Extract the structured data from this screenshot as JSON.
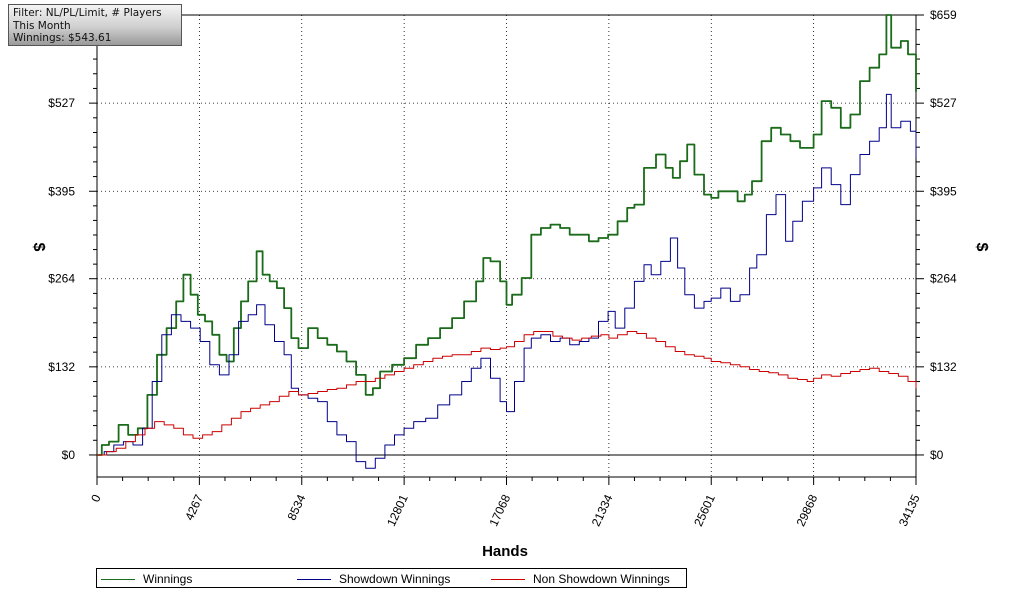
{
  "filter_box": {
    "line1": "Filter: NL/PL/Limit, # Players",
    "line2": "This Month",
    "line3": "Winnings: $543.61"
  },
  "chart_data": {
    "type": "line",
    "xlabel": "Hands",
    "ylabel_left": "$",
    "ylabel_right": "$",
    "xlim": [
      0,
      34135
    ],
    "ylim": [
      -33,
      659
    ],
    "x_ticks": [
      "0",
      "4267",
      "8534",
      "12801",
      "17068",
      "21334",
      "25601",
      "29868",
      "34135"
    ],
    "y_ticks": [
      "$0",
      "$132",
      "$264",
      "$395",
      "$527",
      "$659"
    ],
    "grid": true,
    "legend_position": "bottom",
    "series": [
      {
        "name": "Winnings",
        "color": "#1a6b1a",
        "points": [
          [
            0,
            0
          ],
          [
            200,
            15
          ],
          [
            500,
            20
          ],
          [
            900,
            45
          ],
          [
            1300,
            30
          ],
          [
            1700,
            40
          ],
          [
            2100,
            90
          ],
          [
            2500,
            150
          ],
          [
            2900,
            190
          ],
          [
            3300,
            230
          ],
          [
            3600,
            270
          ],
          [
            3900,
            240
          ],
          [
            4200,
            210
          ],
          [
            4500,
            200
          ],
          [
            4800,
            180
          ],
          [
            5100,
            150
          ],
          [
            5400,
            140
          ],
          [
            5700,
            190
          ],
          [
            6000,
            230
          ],
          [
            6300,
            260
          ],
          [
            6650,
            305
          ],
          [
            6900,
            270
          ],
          [
            7200,
            260
          ],
          [
            7500,
            250
          ],
          [
            7800,
            220
          ],
          [
            8100,
            175
          ],
          [
            8400,
            160
          ],
          [
            8800,
            190
          ],
          [
            9200,
            175
          ],
          [
            9600,
            165
          ],
          [
            10000,
            155
          ],
          [
            10400,
            140
          ],
          [
            10800,
            120
          ],
          [
            11200,
            90
          ],
          [
            11500,
            100
          ],
          [
            11800,
            125
          ],
          [
            12300,
            135
          ],
          [
            12800,
            145
          ],
          [
            13300,
            165
          ],
          [
            13800,
            175
          ],
          [
            14300,
            190
          ],
          [
            14800,
            205
          ],
          [
            15300,
            230
          ],
          [
            15800,
            260
          ],
          [
            16100,
            295
          ],
          [
            16400,
            290
          ],
          [
            16800,
            260
          ],
          [
            17068,
            225
          ],
          [
            17300,
            240
          ],
          [
            17700,
            265
          ],
          [
            18100,
            330
          ],
          [
            18500,
            340
          ],
          [
            18900,
            345
          ],
          [
            19300,
            340
          ],
          [
            19700,
            330
          ],
          [
            20100,
            330
          ],
          [
            20500,
            320
          ],
          [
            20900,
            325
          ],
          [
            21300,
            330
          ],
          [
            21700,
            350
          ],
          [
            22100,
            370
          ],
          [
            22400,
            375
          ],
          [
            22800,
            430
          ],
          [
            23300,
            450
          ],
          [
            23700,
            430
          ],
          [
            24000,
            415
          ],
          [
            24300,
            440
          ],
          [
            24600,
            465
          ],
          [
            24900,
            420
          ],
          [
            25300,
            390
          ],
          [
            25601,
            385
          ],
          [
            25900,
            395
          ],
          [
            26300,
            395
          ],
          [
            26700,
            380
          ],
          [
            27000,
            390
          ],
          [
            27300,
            410
          ],
          [
            27700,
            470
          ],
          [
            28100,
            490
          ],
          [
            28500,
            480
          ],
          [
            28900,
            470
          ],
          [
            29300,
            460
          ],
          [
            29868,
            480
          ],
          [
            30200,
            530
          ],
          [
            30600,
            520
          ],
          [
            31000,
            490
          ],
          [
            31400,
            510
          ],
          [
            31800,
            560
          ],
          [
            32200,
            580
          ],
          [
            32600,
            600
          ],
          [
            32900,
            659
          ],
          [
            33100,
            610
          ],
          [
            33500,
            620
          ],
          [
            33800,
            600
          ],
          [
            34135,
            544
          ]
        ]
      },
      {
        "name": "Showdown Winnings",
        "color": "#00008b",
        "points": [
          [
            0,
            0
          ],
          [
            300,
            5
          ],
          [
            700,
            15
          ],
          [
            1100,
            20
          ],
          [
            1500,
            15
          ],
          [
            1900,
            40
          ],
          [
            2300,
            110
          ],
          [
            2700,
            180
          ],
          [
            3100,
            210
          ],
          [
            3500,
            200
          ],
          [
            3900,
            190
          ],
          [
            4300,
            170
          ],
          [
            4700,
            135
          ],
          [
            5100,
            120
          ],
          [
            5500,
            150
          ],
          [
            5900,
            200
          ],
          [
            6300,
            210
          ],
          [
            6650,
            225
          ],
          [
            7000,
            195
          ],
          [
            7400,
            170
          ],
          [
            7800,
            150
          ],
          [
            8100,
            100
          ],
          [
            8400,
            90
          ],
          [
            8800,
            85
          ],
          [
            9200,
            80
          ],
          [
            9600,
            50
          ],
          [
            10000,
            30
          ],
          [
            10400,
            20
          ],
          [
            10800,
            -10
          ],
          [
            11200,
            -20
          ],
          [
            11600,
            -5
          ],
          [
            12000,
            15
          ],
          [
            12400,
            30
          ],
          [
            12801,
            40
          ],
          [
            13200,
            50
          ],
          [
            13700,
            55
          ],
          [
            14200,
            75
          ],
          [
            14700,
            90
          ],
          [
            15200,
            110
          ],
          [
            15600,
            130
          ],
          [
            16000,
            145
          ],
          [
            16400,
            115
          ],
          [
            16800,
            80
          ],
          [
            17068,
            65
          ],
          [
            17400,
            110
          ],
          [
            17800,
            160
          ],
          [
            18100,
            175
          ],
          [
            18500,
            180
          ],
          [
            18900,
            170
          ],
          [
            19300,
            175
          ],
          [
            19700,
            165
          ],
          [
            20100,
            170
          ],
          [
            20500,
            175
          ],
          [
            20900,
            200
          ],
          [
            21300,
            215
          ],
          [
            21600,
            190
          ],
          [
            22000,
            220
          ],
          [
            22400,
            260
          ],
          [
            22800,
            285
          ],
          [
            23100,
            270
          ],
          [
            23500,
            290
          ],
          [
            23900,
            325
          ],
          [
            24200,
            280
          ],
          [
            24500,
            240
          ],
          [
            24900,
            220
          ],
          [
            25300,
            230
          ],
          [
            25601,
            235
          ],
          [
            26000,
            250
          ],
          [
            26400,
            230
          ],
          [
            26800,
            240
          ],
          [
            27200,
            280
          ],
          [
            27500,
            300
          ],
          [
            27900,
            360
          ],
          [
            28300,
            390
          ],
          [
            28700,
            320
          ],
          [
            29000,
            350
          ],
          [
            29400,
            380
          ],
          [
            29868,
            400
          ],
          [
            30200,
            430
          ],
          [
            30600,
            405
          ],
          [
            31000,
            375
          ],
          [
            31400,
            420
          ],
          [
            31800,
            450
          ],
          [
            32200,
            470
          ],
          [
            32600,
            490
          ],
          [
            32900,
            540
          ],
          [
            33100,
            490
          ],
          [
            33500,
            500
          ],
          [
            33900,
            485
          ],
          [
            34135,
            445
          ]
        ]
      },
      {
        "name": "Non Showdown Winnings",
        "color": "#cc0000",
        "points": [
          [
            0,
            0
          ],
          [
            400,
            5
          ],
          [
            800,
            10
          ],
          [
            1200,
            20
          ],
          [
            1600,
            30
          ],
          [
            2000,
            40
          ],
          [
            2400,
            50
          ],
          [
            2800,
            45
          ],
          [
            3200,
            40
          ],
          [
            3600,
            30
          ],
          [
            4000,
            25
          ],
          [
            4400,
            30
          ],
          [
            4800,
            35
          ],
          [
            5200,
            45
          ],
          [
            5600,
            55
          ],
          [
            6000,
            65
          ],
          [
            6400,
            70
          ],
          [
            6800,
            75
          ],
          [
            7200,
            80
          ],
          [
            7600,
            88
          ],
          [
            8000,
            95
          ],
          [
            8400,
            90
          ],
          [
            8800,
            92
          ],
          [
            9200,
            95
          ],
          [
            9600,
            98
          ],
          [
            10000,
            100
          ],
          [
            10400,
            105
          ],
          [
            10800,
            110
          ],
          [
            11200,
            110
          ],
          [
            11600,
            115
          ],
          [
            12000,
            120
          ],
          [
            12400,
            125
          ],
          [
            12801,
            130
          ],
          [
            13200,
            135
          ],
          [
            13600,
            140
          ],
          [
            14000,
            145
          ],
          [
            14400,
            148
          ],
          [
            14800,
            150
          ],
          [
            15200,
            150
          ],
          [
            15600,
            155
          ],
          [
            16000,
            160
          ],
          [
            16400,
            158
          ],
          [
            16800,
            160
          ],
          [
            17068,
            162
          ],
          [
            17400,
            170
          ],
          [
            17800,
            180
          ],
          [
            18200,
            185
          ],
          [
            18600,
            185
          ],
          [
            19000,
            178
          ],
          [
            19400,
            175
          ],
          [
            19800,
            172
          ],
          [
            20200,
            175
          ],
          [
            20600,
            178
          ],
          [
            21000,
            180
          ],
          [
            21334,
            175
          ],
          [
            21700,
            180
          ],
          [
            22100,
            185
          ],
          [
            22500,
            182
          ],
          [
            22900,
            175
          ],
          [
            23300,
            170
          ],
          [
            23700,
            162
          ],
          [
            24100,
            155
          ],
          [
            24500,
            150
          ],
          [
            24900,
            148
          ],
          [
            25300,
            145
          ],
          [
            25601,
            140
          ],
          [
            26000,
            138
          ],
          [
            26400,
            135
          ],
          [
            26800,
            132
          ],
          [
            27200,
            128
          ],
          [
            27600,
            125
          ],
          [
            28000,
            123
          ],
          [
            28400,
            120
          ],
          [
            28800,
            115
          ],
          [
            29200,
            113
          ],
          [
            29600,
            110
          ],
          [
            29868,
            115
          ],
          [
            30200,
            120
          ],
          [
            30600,
            118
          ],
          [
            31000,
            122
          ],
          [
            31400,
            125
          ],
          [
            31800,
            128
          ],
          [
            32200,
            130
          ],
          [
            32600,
            125
          ],
          [
            33000,
            122
          ],
          [
            33400,
            118
          ],
          [
            33800,
            110
          ],
          [
            34135,
            100
          ]
        ]
      }
    ]
  }
}
